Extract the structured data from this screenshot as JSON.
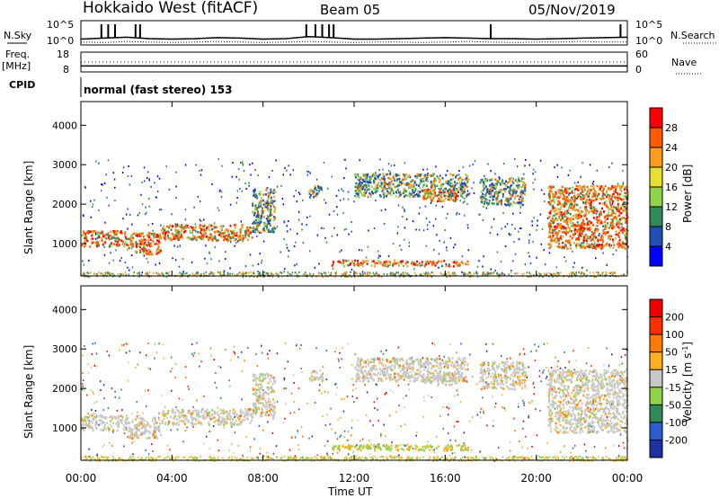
{
  "header": {
    "title": "Hokkaido West (fitACF)",
    "beam": "Beam 05",
    "date": "05/Nov/2019"
  },
  "chart_data": [
    {
      "type": "line",
      "title": "",
      "left_label": "N.Sky",
      "right_label": "N.Search",
      "left_ticks": [
        "10^5",
        "10^0"
      ],
      "right_ticks": [
        "10^5",
        "10^0"
      ],
      "ylim_log10": [
        0,
        5
      ],
      "x_hours": [
        0,
        1,
        2,
        3,
        4,
        5,
        6,
        7,
        8,
        9,
        10,
        11,
        12,
        13,
        14,
        15,
        16,
        17,
        18,
        19,
        20,
        21,
        22,
        23,
        24
      ],
      "noise_sky_log10": [
        1.2,
        1.4,
        1.6,
        1.3,
        1.2,
        1.3,
        1.5,
        1.4,
        1.2,
        1.3,
        1.7,
        1.5,
        1.2,
        1.2,
        1.3,
        1.4,
        1.5,
        1.4,
        1.3,
        1.3,
        1.2,
        1.3,
        1.4,
        1.5,
        1.6
      ],
      "noise_search_log10": [
        0.6,
        0.5,
        0.7,
        0.6,
        0.5,
        0.6,
        0.7,
        0.6,
        0.5,
        0.6,
        0.7,
        0.6,
        0.5,
        0.6,
        0.6,
        0.5,
        0.6,
        0.7,
        0.6,
        0.5,
        0.6,
        0.6,
        0.7,
        0.6,
        0.6
      ],
      "spikes_hours": [
        0.9,
        1.2,
        1.5,
        2.4,
        2.6,
        9.9,
        10.3,
        10.6,
        10.9,
        11.1,
        18.0,
        23.7
      ]
    },
    {
      "type": "line",
      "left_label": "Freq.",
      "left_unit": "[MHz]",
      "right_label": "Nave",
      "left_ticks": [
        "18",
        "8"
      ],
      "right_ticks": [
        "60",
        "0"
      ],
      "frequency_mhz": 11.0,
      "nave": 30,
      "cpid_label": "CPID",
      "cpid_text": "normal (fast stereo) 153"
    },
    {
      "type": "heatmap",
      "parameter": "Power",
      "colorbar_label": "Power [dB]",
      "colorbar_ticks": [
        "28",
        "24",
        "20",
        "16",
        "12",
        "8",
        "4"
      ],
      "colorbar_colors": [
        "#0000ff",
        "#1f4fb5",
        "#2e8b57",
        "#8fd44a",
        "#e8e030",
        "#ff9a20",
        "#ff5a00",
        "#ff0000"
      ],
      "ylabel": "Slant Range [km]",
      "yticks": [
        "4000",
        "3000",
        "2000",
        "1000"
      ],
      "ylim_km": [
        180,
        4600
      ],
      "xlim_hours": [
        0,
        24
      ],
      "echo_regions": [
        {
          "t0": 0.0,
          "t1": 2.0,
          "r0": 950,
          "r1": 1350,
          "level": "high"
        },
        {
          "t0": 2.0,
          "t1": 3.5,
          "r0": 750,
          "r1": 1300,
          "level": "high"
        },
        {
          "t0": 3.5,
          "t1": 7.5,
          "r0": 1100,
          "r1": 1500,
          "level": "high"
        },
        {
          "t0": 7.5,
          "t1": 8.5,
          "r0": 1300,
          "r1": 2400,
          "level": "mid"
        },
        {
          "t0": 10.0,
          "t1": 10.6,
          "r0": 2200,
          "r1": 2500,
          "level": "mid"
        },
        {
          "t0": 12.0,
          "t1": 17.0,
          "r0": 2200,
          "r1": 2800,
          "level": "mid"
        },
        {
          "t0": 15.0,
          "t1": 16.5,
          "r0": 2100,
          "r1": 2400,
          "level": "high"
        },
        {
          "t0": 17.5,
          "t1": 19.5,
          "r0": 2000,
          "r1": 2700,
          "level": "mid"
        },
        {
          "t0": 20.5,
          "t1": 24.0,
          "r0": 900,
          "r1": 2500,
          "level": "high"
        },
        {
          "t0": 11.0,
          "t1": 17.0,
          "r0": 450,
          "r1": 600,
          "level": "high"
        }
      ]
    },
    {
      "type": "heatmap",
      "parameter": "Velocity",
      "colorbar_label": "Velocity [m s",
      "colorbar_label_sup": "-1",
      "colorbar_label_end": "]",
      "colorbar_ticks": [
        "200",
        "100",
        "50",
        "15",
        "-15",
        "-50",
        "-100",
        "-200"
      ],
      "colorbar_colors": [
        "#1f2fa5",
        "#2a5fd0",
        "#2e8b57",
        "#8fd44a",
        "#c8c8c8",
        "#ffb020",
        "#ff7a00",
        "#ff3000",
        "#ee0000"
      ],
      "ylabel": "Slant Range [km]",
      "yticks": [
        "4000",
        "3000",
        "2000",
        "1000"
      ],
      "ylim_km": [
        180,
        4600
      ],
      "xlim_hours": [
        0,
        24
      ],
      "xticks": [
        "00:00",
        "04:00",
        "08:00",
        "12:00",
        "16:00",
        "20:00",
        "00:00"
      ],
      "xlabel": "Time UT"
    }
  ]
}
